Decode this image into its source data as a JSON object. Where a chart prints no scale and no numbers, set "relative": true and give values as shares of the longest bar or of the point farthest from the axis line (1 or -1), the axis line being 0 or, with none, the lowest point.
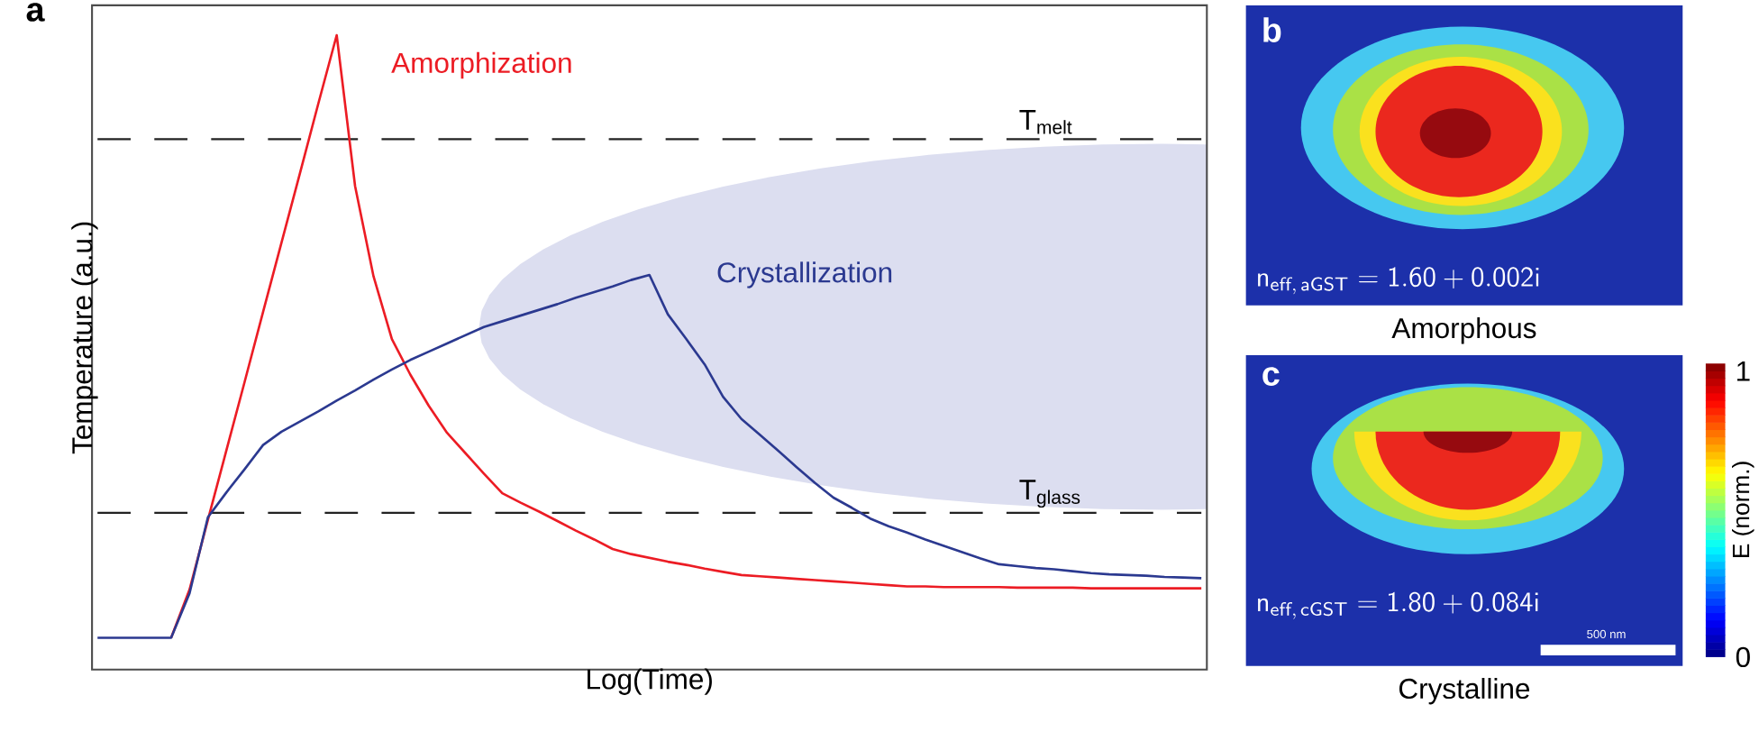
{
  "chart_data": [
    {
      "type": "line",
      "title": "a",
      "xlabel": "Log(Time)",
      "ylabel": "Temperature (a.u.)",
      "relative": true,
      "tick_labels": false,
      "categories": [
        null,
        null,
        null,
        null,
        null,
        null,
        null,
        null,
        null,
        null,
        null,
        null,
        null,
        null,
        null,
        null,
        null,
        null,
        null,
        null,
        null,
        null,
        null,
        null,
        null,
        null,
        null,
        null,
        null,
        null,
        null,
        null,
        null,
        null,
        null,
        null,
        null,
        null,
        null,
        null,
        null,
        null,
        null,
        null,
        null,
        null,
        null,
        null,
        null,
        null,
        null,
        null,
        null,
        null,
        null,
        null,
        null,
        null,
        null,
        null,
        null
      ],
      "series": [
        {
          "name": "Amorphization",
          "color": "#ec1c24",
          "values": [
            null,
            null,
            null,
            null,
            0.05,
            0.126,
            0.236,
            0.345,
            0.454,
            0.564,
            0.673,
            0.782,
            0.892,
            1,
            0.762,
            0.62,
            0.521,
            0.465,
            0.416,
            0.373,
            0.341,
            0.309,
            0.278,
            0.263,
            0.249,
            0.234,
            0.219,
            0.205,
            0.19,
            0.182,
            0.176,
            0.17,
            0.165,
            0.159,
            0.154,
            0.149,
            0.147,
            0.145,
            0.143,
            0.141,
            0.139,
            0.137,
            0.135,
            0.133,
            0.131,
            0.131,
            0.13,
            0.13,
            0.13,
            0.13,
            0.129,
            0.129,
            0.129,
            0.129,
            0.128,
            0.128,
            0.128,
            0.128,
            0.128,
            0.128,
            0.128
          ]
        },
        {
          "name": "Crystallization",
          "color": "#2b3990",
          "values": [
            0.05,
            0.05,
            0.05,
            0.05,
            0.05,
            0.12,
            0.24,
            0.279,
            0.316,
            0.354,
            0.375,
            0.391,
            0.407,
            0.424,
            0.44,
            0.457,
            0.473,
            0.488,
            0.501,
            0.514,
            0.527,
            0.54,
            0.549,
            0.558,
            0.567,
            0.576,
            0.586,
            0.595,
            0.604,
            0.614,
            0.622,
            0.56,
            0.521,
            0.481,
            0.43,
            0.395,
            0.37,
            0.345,
            0.319,
            0.294,
            0.271,
            0.255,
            0.238,
            0.226,
            0.216,
            0.205,
            0.195,
            0.185,
            0.175,
            0.166,
            0.163,
            0.16,
            0.158,
            0.155,
            0.152,
            0.15,
            0.149,
            0.148,
            0.146,
            0.145,
            0.144
          ]
        }
      ],
      "ref_lines": [
        {
          "axis": "y",
          "value": 0.836,
          "label": "T$_{melt}$",
          "color": "#222222",
          "line_style": "dashed"
        },
        {
          "axis": "y",
          "value": 0.247,
          "label": "T$_{glass}$",
          "color": "#222222",
          "line_style": "dashed"
        }
      ]
    },
    {
      "type": "other",
      "title": "b",
      "xlabel": "Amorphous",
      "annotations": [
        "\\mathsf{n_{eff,\\,aGST} = 1.60 + 0.002i}"
      ]
    },
    {
      "type": "other",
      "title": "c",
      "xlabel": "Crystalline",
      "annotations": [
        "\\mathsf{n_{eff,\\,cGST} = 1.80 + 0.084i}",
        "500 nm",
        "1",
        "0",
        "E (norm.)"
      ]
    }
  ]
}
